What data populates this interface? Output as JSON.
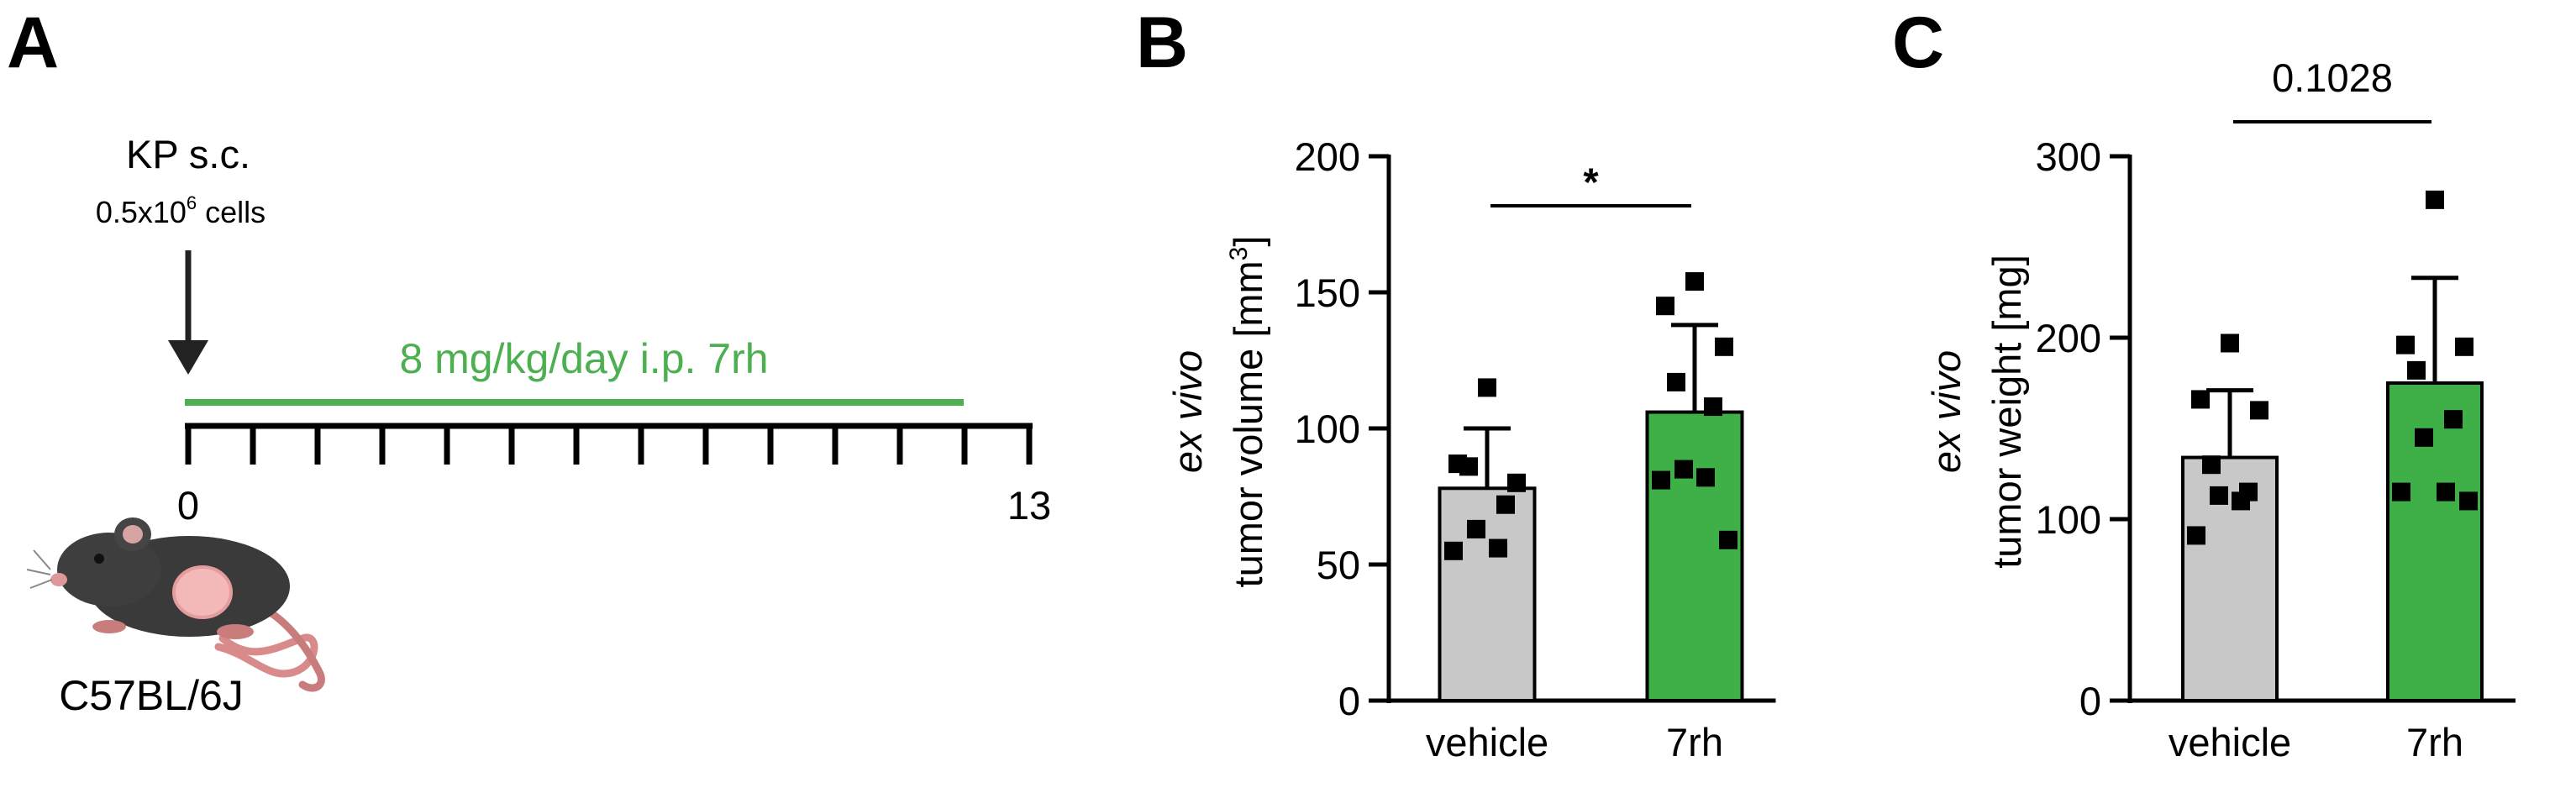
{
  "panels": {
    "A": {
      "letter": "A",
      "injection_title": "KP s.c.",
      "cells_prefix": "0.5x10",
      "cells_exp": "6",
      "cells_suffix": " cells",
      "treatment_label": "8 mg/kg/day i.p. 7rh",
      "timeline_start": "0",
      "timeline_end": "13",
      "mouse_strain": "C57BL/6J",
      "treatment_color": "#4CAF50",
      "mouse_icon": "mouse-icon"
    },
    "B": {
      "letter": "B"
    },
    "C": {
      "letter": "C"
    }
  },
  "chart_data": [
    {
      "id": "B",
      "type": "bar",
      "categories": [
        "vehicle",
        "7rh"
      ],
      "series": [
        {
          "name": "mean",
          "values": [
            78,
            106
          ],
          "sd": [
            22,
            32
          ],
          "colors": [
            "#C8C8C8",
            "#3FAF47"
          ]
        }
      ],
      "points": [
        [
          115,
          87,
          80,
          86,
          72,
          63,
          56,
          55
        ],
        [
          154,
          145,
          130,
          117,
          108,
          85,
          82,
          81,
          59
        ]
      ],
      "ylabel_italic": "ex vivo",
      "ylabel_pre": "tumor volume [mm",
      "ylabel_sup": "3",
      "ylabel_post": "]",
      "ylim": [
        0,
        200
      ],
      "yticks": [
        "0",
        "50",
        "100",
        "150",
        "200"
      ],
      "annotation": "*"
    },
    {
      "id": "C",
      "type": "bar",
      "categories": [
        "vehicle",
        "7rh"
      ],
      "series": [
        {
          "name": "mean",
          "values": [
            134,
            175
          ],
          "sd": [
            37,
            58
          ],
          "colors": [
            "#C8C8C8",
            "#3FAF47"
          ]
        }
      ],
      "points": [
        [
          197,
          166,
          160,
          130,
          115,
          113,
          110,
          91
        ],
        [
          276,
          196,
          195,
          182,
          155,
          145,
          115,
          115,
          110
        ]
      ],
      "ylabel_italic": "ex vivo",
      "ylabel_pre": "tumor weight [mg]",
      "ylabel_sup": "",
      "ylabel_post": "",
      "ylim": [
        0,
        300
      ],
      "yticks": [
        "0",
        "100",
        "200",
        "300"
      ],
      "annotation": "0.1028"
    }
  ]
}
